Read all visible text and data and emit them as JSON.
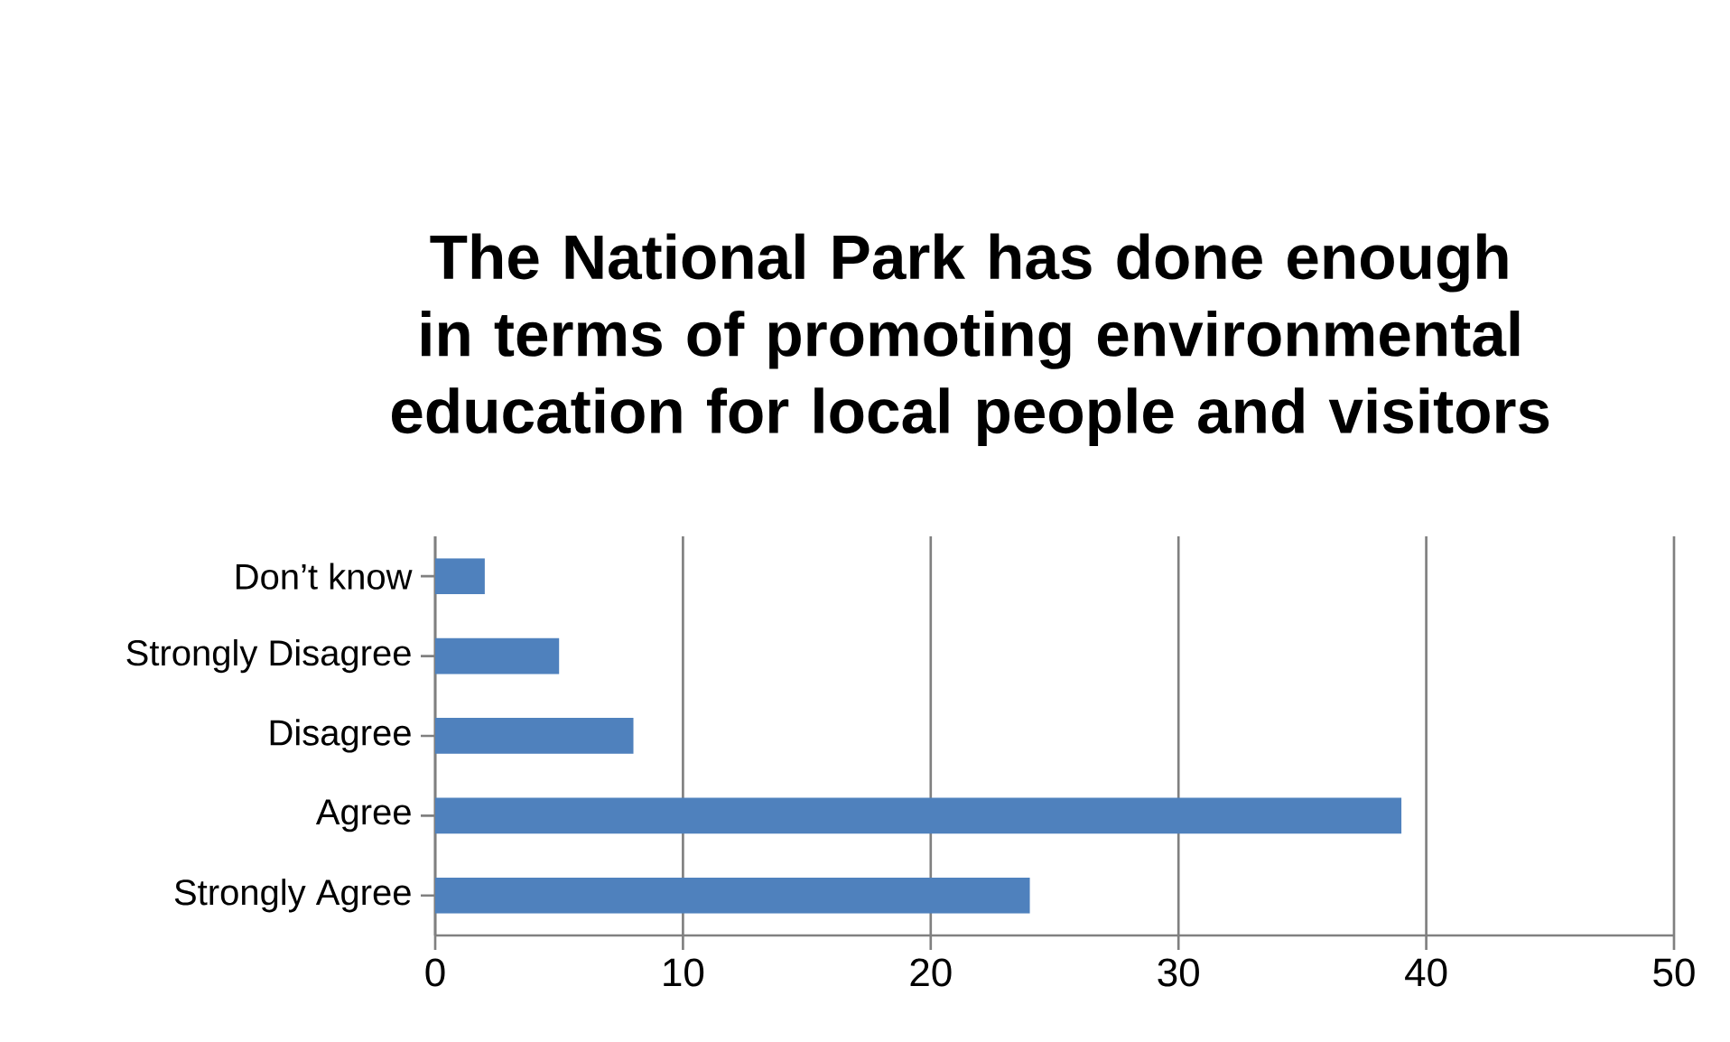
{
  "chart_data": {
    "type": "bar",
    "orientation": "horizontal",
    "title": "The National Park has done enough in terms of promoting environmental education for local people and visitors",
    "categories": [
      "Don’t know",
      "Strongly Disagree",
      "Disagree",
      "Agree",
      "Strongly Agree"
    ],
    "values": [
      2,
      5,
      8,
      39,
      24
    ],
    "color": "#4f81bd",
    "xlim": [
      0,
      50
    ],
    "xticks": [
      0,
      10,
      20,
      30,
      40,
      50
    ],
    "grid": "x"
  }
}
